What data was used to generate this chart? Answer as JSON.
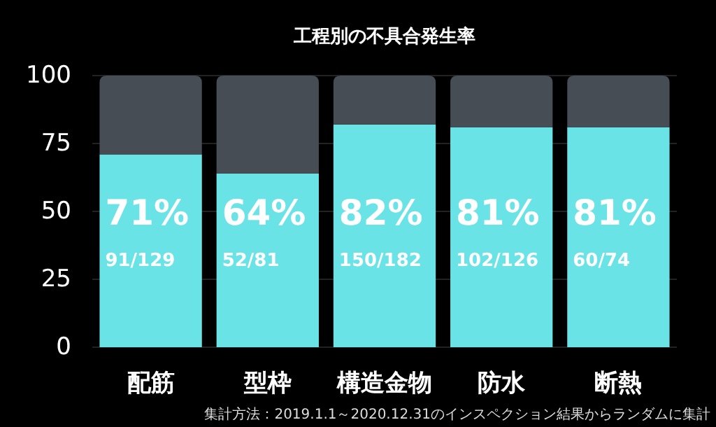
{
  "chart_data": {
    "type": "bar",
    "title": "工程別の不具合発生率",
    "stacked": true,
    "categories": [
      "配筋",
      "型枠",
      "構造金物",
      "防水",
      "断熱"
    ],
    "series": [
      {
        "color": "#6ae3e6",
        "values": [
          71,
          64,
          82,
          81,
          81
        ],
        "value_labels": [
          "71%\n91/129",
          "64%\n52/81",
          "82%\n150/182",
          "81%\n102/126",
          "81%\n60/74"
        ]
      },
      {
        "color": "#474d55",
        "values": [
          29,
          36,
          18,
          19,
          19
        ]
      }
    ],
    "ylim": [
      0,
      100
    ],
    "yticks": [
      0,
      25,
      50,
      75,
      100
    ],
    "grid": "y",
    "annotations": [
      "集計方法：2019.1.1～2020.12.31のインスペクション結果からランダムに集計"
    ]
  }
}
